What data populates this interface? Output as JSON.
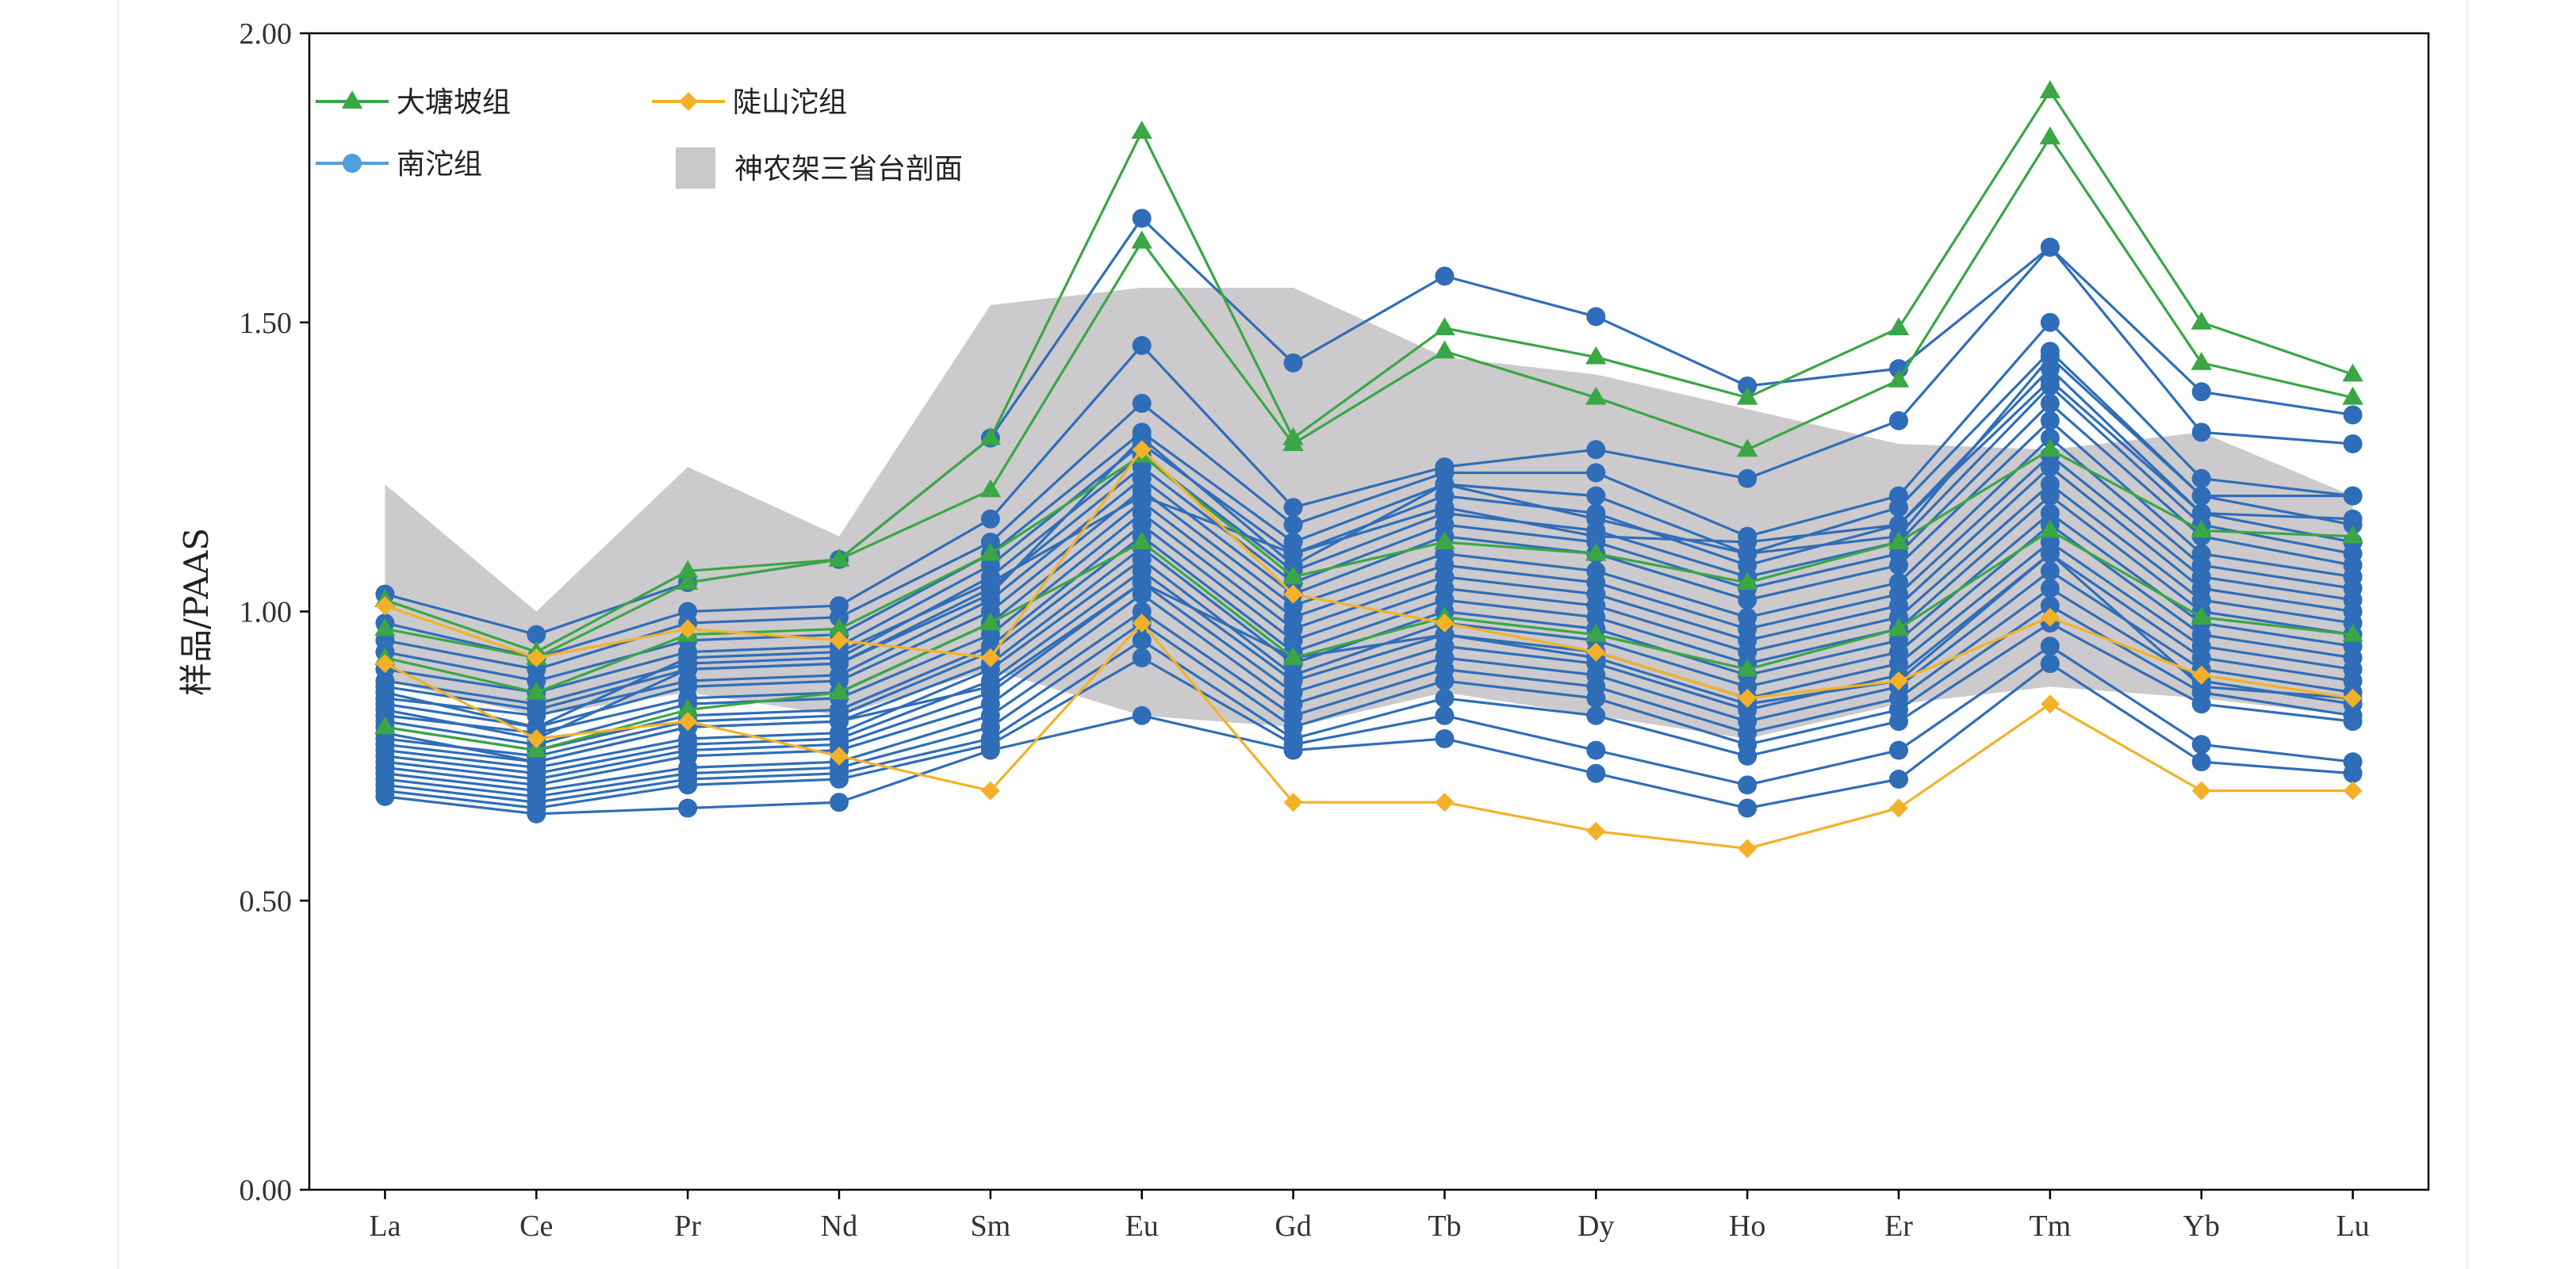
{
  "colors": {
    "dts": "#3aa645",
    "nt": "#2f6db8",
    "nt_light": "#4f9fe0",
    "lst": "#f3b12a",
    "band": "#c9c7ca",
    "axis": "#000000"
  },
  "chart_data": {
    "type": "line",
    "title": "",
    "xlabel": "",
    "ylabel": "样品/PAAS",
    "ylim": [
      0,
      2
    ],
    "ytick_labels": [
      "0.00",
      "0.50",
      "1.00",
      "1.50",
      "2.00"
    ],
    "categories": [
      "La",
      "Ce",
      "Pr",
      "Nd",
      "Sm",
      "Eu",
      "Gd",
      "Tb",
      "Dy",
      "Ho",
      "Er",
      "Tm",
      "Yb",
      "Lu"
    ],
    "grid": false,
    "legend_position": "top-left",
    "legend": [
      {
        "label": "大塘坡组",
        "marker": "triangle",
        "color_key": "dts"
      },
      {
        "label": "陡山沱组",
        "marker": "diamond",
        "color_key": "lst"
      },
      {
        "label": "南沱组",
        "marker": "circle",
        "color_key": "nt_light"
      },
      {
        "label": "神农架三省台剖面",
        "marker": "square",
        "color_key": "band"
      }
    ],
    "band": {
      "name": "神农架三省台剖面",
      "upper": [
        1.22,
        1.0,
        1.25,
        1.13,
        1.53,
        1.56,
        1.56,
        1.44,
        1.41,
        1.35,
        1.29,
        1.28,
        1.31,
        1.2
      ],
      "lower": [
        0.88,
        0.82,
        0.86,
        0.82,
        0.9,
        0.82,
        0.8,
        0.86,
        0.82,
        0.78,
        0.84,
        0.87,
        0.85,
        0.82
      ]
    },
    "groups": [
      {
        "name": "大塘坡组",
        "color_key": "dts",
        "marker": "triangle",
        "series": [
          [
            1.02,
            0.93,
            1.07,
            1.09,
            1.3,
            1.83,
            1.3,
            1.49,
            1.44,
            1.37,
            1.49,
            1.9,
            1.5,
            1.41
          ],
          [
            0.97,
            0.92,
            1.05,
            1.09,
            1.21,
            1.64,
            1.29,
            1.45,
            1.37,
            1.28,
            1.4,
            1.82,
            1.43,
            1.37
          ],
          [
            0.92,
            0.86,
            0.96,
            0.97,
            1.1,
            1.27,
            1.06,
            1.12,
            1.1,
            1.05,
            1.12,
            1.28,
            1.14,
            1.13
          ],
          [
            0.8,
            0.76,
            0.83,
            0.86,
            0.98,
            1.12,
            0.92,
            0.99,
            0.96,
            0.9,
            0.97,
            1.14,
            0.99,
            0.96
          ]
        ]
      },
      {
        "name": "南沱组",
        "color_key": "nt",
        "marker": "circle",
        "series": [
          [
            1.03,
            0.96,
            1.05,
            1.09,
            1.3,
            1.68,
            1.43,
            1.58,
            1.51,
            1.39,
            1.42,
            1.63,
            1.38,
            1.34
          ],
          [
            0.98,
            0.92,
            1.0,
            1.01,
            1.16,
            1.46,
            1.18,
            1.25,
            1.28,
            1.23,
            1.33,
            1.63,
            1.31,
            1.29
          ],
          [
            0.95,
            0.9,
            0.98,
            0.99,
            1.12,
            1.36,
            1.15,
            1.24,
            1.24,
            1.13,
            1.2,
            1.5,
            1.23,
            1.2
          ],
          [
            0.93,
            0.88,
            0.95,
            0.96,
            1.1,
            1.31,
            1.12,
            1.22,
            1.2,
            1.1,
            1.18,
            1.45,
            1.2,
            1.15
          ],
          [
            0.9,
            0.86,
            0.93,
            0.94,
            1.08,
            1.29,
            1.1,
            1.2,
            1.17,
            1.08,
            1.15,
            1.42,
            1.17,
            1.12
          ],
          [
            0.88,
            0.84,
            0.91,
            0.92,
            1.06,
            1.27,
            1.07,
            1.17,
            1.14,
            1.06,
            1.12,
            1.39,
            1.15,
            1.1
          ],
          [
            0.87,
            0.83,
            0.9,
            0.91,
            1.04,
            1.25,
            1.05,
            1.15,
            1.12,
            1.04,
            1.1,
            1.36,
            1.13,
            1.08
          ],
          [
            0.85,
            0.82,
            0.88,
            0.89,
            1.02,
            1.23,
            1.03,
            1.13,
            1.1,
            1.02,
            1.08,
            1.33,
            1.1,
            1.06
          ],
          [
            0.84,
            0.8,
            0.87,
            0.88,
            1.0,
            1.21,
            1.01,
            1.1,
            1.07,
            0.99,
            1.05,
            1.3,
            1.08,
            1.04
          ],
          [
            0.82,
            0.79,
            0.85,
            0.86,
            0.98,
            1.19,
            0.99,
            1.08,
            1.05,
            0.97,
            1.03,
            1.27,
            1.06,
            1.02
          ],
          [
            0.81,
            0.77,
            0.84,
            0.85,
            0.96,
            1.17,
            0.97,
            1.06,
            1.03,
            0.95,
            1.01,
            1.25,
            1.04,
            1.0
          ],
          [
            0.8,
            0.76,
            0.82,
            0.83,
            0.94,
            1.15,
            0.95,
            1.04,
            1.01,
            0.93,
            0.99,
            1.22,
            1.02,
            0.98
          ],
          [
            0.78,
            0.75,
            0.81,
            0.82,
            0.93,
            1.13,
            0.93,
            1.02,
            0.99,
            0.91,
            0.97,
            1.2,
            1.0,
            0.96
          ],
          [
            0.77,
            0.74,
            0.8,
            0.81,
            0.91,
            1.11,
            0.91,
            1.0,
            0.97,
            0.89,
            0.95,
            1.17,
            0.98,
            0.94
          ],
          [
            0.76,
            0.73,
            0.78,
            0.79,
            0.9,
            1.09,
            0.89,
            0.98,
            0.95,
            0.87,
            0.93,
            1.15,
            0.96,
            0.92
          ],
          [
            0.75,
            0.72,
            0.77,
            0.78,
            0.88,
            1.07,
            0.88,
            0.96,
            0.93,
            0.85,
            0.91,
            1.12,
            0.94,
            0.9
          ],
          [
            0.74,
            0.71,
            0.76,
            0.77,
            0.86,
            1.05,
            0.86,
            0.94,
            0.91,
            0.83,
            0.89,
            1.1,
            0.92,
            0.88
          ],
          [
            0.73,
            0.7,
            0.75,
            0.76,
            0.84,
            1.03,
            0.84,
            0.92,
            0.89,
            0.81,
            0.87,
            1.07,
            0.9,
            0.86
          ],
          [
            0.72,
            0.69,
            0.73,
            0.74,
            0.82,
            1.0,
            0.82,
            0.9,
            0.87,
            0.79,
            0.85,
            1.04,
            0.88,
            0.84
          ],
          [
            0.71,
            0.68,
            0.72,
            0.73,
            0.8,
            0.98,
            0.8,
            0.88,
            0.85,
            0.77,
            0.83,
            1.01,
            0.86,
            0.82
          ],
          [
            0.7,
            0.67,
            0.71,
            0.72,
            0.78,
            0.95,
            0.78,
            0.85,
            0.82,
            0.75,
            0.81,
            0.98,
            0.84,
            0.81
          ],
          [
            0.69,
            0.66,
            0.7,
            0.71,
            0.77,
            0.92,
            0.77,
            0.82,
            0.76,
            0.7,
            0.76,
            0.94,
            0.77,
            0.74
          ],
          [
            0.68,
            0.65,
            0.66,
            0.67,
            0.76,
            0.82,
            0.76,
            0.78,
            0.72,
            0.66,
            0.71,
            0.91,
            0.74,
            0.72
          ],
          [
            0.86,
            0.8,
            0.92,
            0.93,
            1.05,
            1.2,
            1.1,
            1.18,
            1.13,
            1.12,
            1.15,
            1.4,
            1.17,
            1.16
          ],
          [
            0.83,
            0.78,
            0.9,
            0.91,
            1.03,
            1.3,
            1.08,
            1.22,
            1.16,
            1.1,
            1.13,
            1.44,
            1.2,
            1.2
          ],
          [
            0.79,
            0.74,
            0.8,
            0.81,
            0.87,
            1.05,
            0.92,
            0.96,
            0.92,
            0.84,
            0.88,
            1.1,
            0.87,
            0.85
          ]
        ]
      },
      {
        "name": "陡山沱组",
        "color_key": "lst",
        "marker": "diamond",
        "series": [
          [
            1.01,
            0.92,
            0.97,
            0.95,
            0.92,
            1.28,
            1.03,
            0.98,
            0.93,
            0.85,
            0.88,
            0.99,
            0.89,
            0.85
          ],
          [
            0.91,
            0.78,
            0.81,
            0.75,
            0.69,
            0.98,
            0.67,
            0.67,
            0.62,
            0.59,
            0.66,
            0.84,
            0.69,
            0.69
          ]
        ]
      }
    ]
  }
}
